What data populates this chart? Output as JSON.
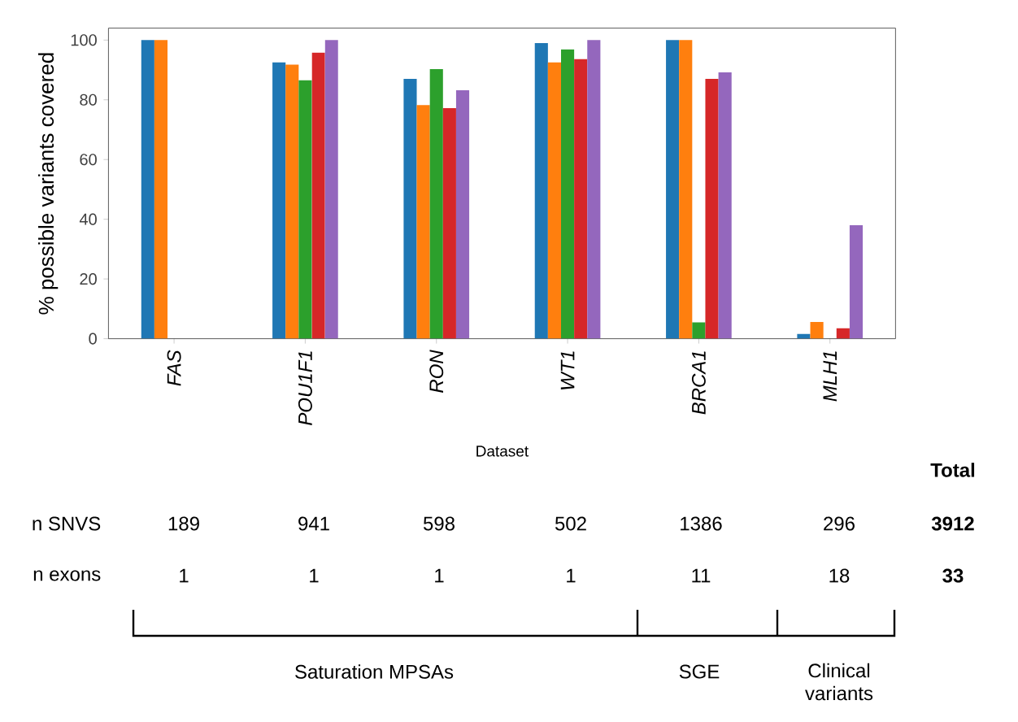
{
  "chart_data": {
    "type": "bar",
    "categories": [
      "FAS",
      "POU1F1",
      "RON",
      "WT1",
      "BRCA1",
      "MLH1"
    ],
    "series": [
      {
        "color": "#1f77b4",
        "values": [
          100,
          92.5,
          87,
          99,
          100,
          1.6
        ]
      },
      {
        "color": "#ff7f0e",
        "values": [
          100,
          91.8,
          78.2,
          92.5,
          100,
          5.6
        ]
      },
      {
        "color": "#2ca02c",
        "values": [
          null,
          86.5,
          90.3,
          96.9,
          5.5,
          null
        ]
      },
      {
        "color": "#d62728",
        "values": [
          null,
          95.8,
          77.2,
          93.6,
          87,
          3.5
        ]
      },
      {
        "color": "#9467bd",
        "values": [
          null,
          100,
          83.2,
          100,
          89.2,
          38
        ]
      }
    ],
    "ylim": [
      0,
      104
    ],
    "yticks": [
      0,
      20,
      40,
      60,
      80,
      100
    ],
    "grid": false,
    "xlabel": "Dataset",
    "ylabel": "% possible variants covered",
    "annotations": [
      "Total",
      "n SNVS",
      "189",
      "941",
      "598",
      "502",
      "1386",
      "296",
      "3912",
      "n exons",
      "1",
      "1",
      "1",
      "1",
      "11",
      "18",
      "33",
      "Saturation MPSAs",
      "SGE",
      "Clinical variants"
    ]
  }
}
